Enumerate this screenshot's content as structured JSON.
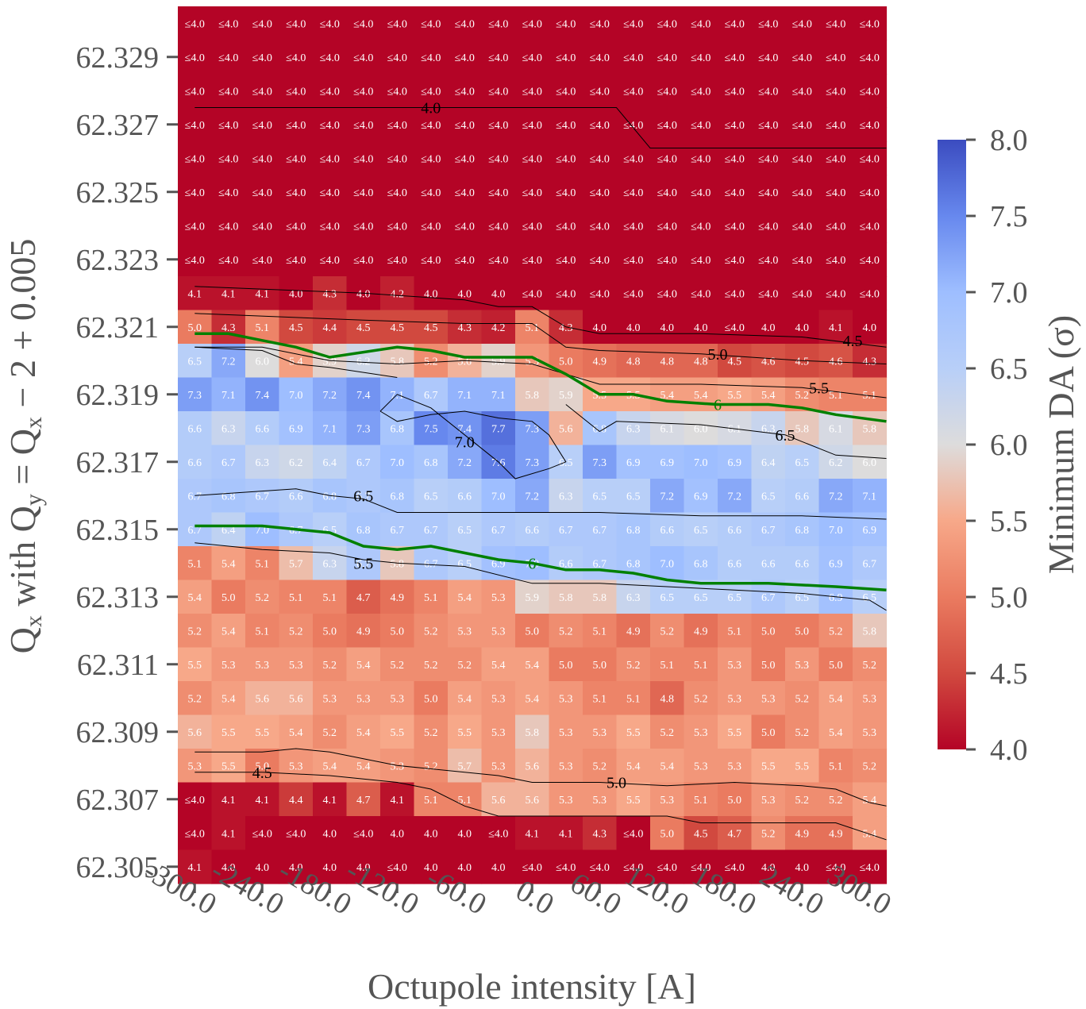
{
  "chart_data": {
    "type": "heatmap",
    "xlabel": "Octupole intensity [A]",
    "ylabel_parts": {
      "q1": "Q",
      "s1": "x",
      "mid": " with ",
      "q2": "Q",
      "s2": "y",
      "eq": " = ",
      "q3": "Q",
      "s3": "x",
      "tail": " − 2 + 0.005"
    },
    "colorbar_label": "Minimum DA (σ)",
    "colormap": "coolwarm_r",
    "vmin": 4.0,
    "vmax": 8.0,
    "colorbar_ticks": [
      "4.0",
      "4.5",
      "5.0",
      "5.5",
      "6.0",
      "6.5",
      "7.0",
      "7.5",
      "8.0"
    ],
    "colorbar_tick_values": [
      4.0,
      4.5,
      5.0,
      5.5,
      6.0,
      6.5,
      7.0,
      7.5,
      8.0
    ],
    "x": [
      -300,
      -270,
      -240,
      -210,
      -180,
      -150,
      -120,
      -90,
      -60,
      -30,
      0,
      30,
      60,
      90,
      120,
      150,
      180,
      210,
      240,
      270,
      300
    ],
    "x_tick_labels": [
      "-300.0",
      "-240.0",
      "-180.0",
      "-120.0",
      "-60.0",
      "0.0",
      "60.0",
      "120.0",
      "180.0",
      "240.0",
      "300.0"
    ],
    "x_tick_values": [
      -300,
      -240,
      -180,
      -120,
      -60,
      0,
      60,
      120,
      180,
      240,
      300
    ],
    "y": [
      62.305,
      62.306,
      62.307,
      62.308,
      62.309,
      62.31,
      62.311,
      62.312,
      62.313,
      62.314,
      62.315,
      62.316,
      62.317,
      62.318,
      62.319,
      62.32,
      62.321,
      62.322,
      62.323,
      62.324,
      62.325,
      62.326,
      62.327,
      62.328,
      62.329,
      62.33
    ],
    "y_tick_labels": [
      "62.329",
      "62.327",
      "62.325",
      "62.323",
      "62.321",
      "62.319",
      "62.317",
      "62.315",
      "62.313",
      "62.311",
      "62.309",
      "62.307",
      "62.305"
    ],
    "y_tick_values": [
      62.329,
      62.327,
      62.325,
      62.323,
      62.321,
      62.319,
      62.317,
      62.315,
      62.313,
      62.311,
      62.309,
      62.307,
      62.305
    ],
    "cell_text_rows_top_to_bottom": [
      "≤4.0,≤4.0,≤4.0,≤4.0,≤4.0,≤4.0,≤4.0,≤4.0,≤4.0,≤4.0,≤4.0,≤4.0,≤4.0,≤4.0,≤4.0,≤4.0,≤4.0,≤4.0,≤4.0,≤4.0,≤4.0",
      "≤4.0,≤4.0,≤4.0,≤4.0,≤4.0,≤4.0,≤4.0,≤4.0,≤4.0,≤4.0,≤4.0,≤4.0,≤4.0,≤4.0,≤4.0,≤4.0,≤4.0,≤4.0,≤4.0,≤4.0,≤4.0",
      "≤4.0,≤4.0,≤4.0,≤4.0,≤4.0,≤4.0,≤4.0,≤4.0,≤4.0,≤4.0,≤4.0,≤4.0,≤4.0,≤4.0,≤4.0,≤4.0,≤4.0,≤4.0,≤4.0,≤4.0,≤4.0",
      "≤4.0,≤4.0,≤4.0,≤4.0,≤4.0,≤4.0,≤4.0,≤4.0,≤4.0,≤4.0,≤4.0,≤4.0,≤4.0,≤4.0,≤4.0,≤4.0,≤4.0,≤4.0,≤4.0,≤4.0,≤4.0",
      "≤4.0,≤4.0,≤4.0,≤4.0,≤4.0,≤4.0,≤4.0,≤4.0,≤4.0,≤4.0,≤4.0,≤4.0,≤4.0,≤4.0,≤4.0,≤4.0,≤4.0,≤4.0,≤4.0,≤4.0,≤4.0",
      "≤4.0,≤4.0,≤4.0,≤4.0,≤4.0,≤4.0,≤4.0,≤4.0,≤4.0,≤4.0,≤4.0,≤4.0,≤4.0,≤4.0,≤4.0,≤4.0,≤4.0,≤4.0,≤4.0,≤4.0,≤4.0",
      "≤4.0,≤4.0,≤4.0,≤4.0,≤4.0,≤4.0,≤4.0,≤4.0,≤4.0,≤4.0,≤4.0,≤4.0,≤4.0,≤4.0,≤4.0,≤4.0,≤4.0,≤4.0,≤4.0,≤4.0,≤4.0",
      "≤4.0,≤4.0,≤4.0,≤4.0,≤4.0,≤4.0,≤4.0,≤4.0,≤4.0,≤4.0,≤4.0,≤4.0,≤4.0,≤4.0,≤4.0,≤4.0,≤4.0,≤4.0,≤4.0,≤4.0,≤4.0",
      "4.1,4.1,4.1,4.0,4.3,4.0,4.2,4.0,4.0,4.0,≤4.0,≤4.0,≤4.0,≤4.0,≤4.0,≤4.0,≤4.0,≤4.0,≤4.0,≤4.0,≤4.0",
      "5.0,4.3,5.1,4.5,4.4,4.5,4.5,4.5,4.3,4.2,5.1,4.3,4.0,4.0,4.0,4.0,≤4.0,4.0,4.0,4.1,4.0",
      "6.5,7.2,6.0,5.4,5.9,6.2,5.8,5.2,5.6,5.9,5.3,5.0,4.9,4.8,4.8,4.8,4.5,4.6,4.5,4.6,4.3",
      "7.3,7.1,7.4,7.0,7.2,7.4,7.1,6.7,7.1,7.1,5.8,5.9,5.5,5.5,5.4,5.4,5.5,5.4,5.2,5.1,5.1",
      "6.6,6.3,6.6,6.9,7.1,7.3,6.8,7.5,7.4,7.7,7.3,5.6,6.8,6.3,6.1,6.0,6.1,6.3,5.8,6.1,5.8",
      "6.6,6.7,6.3,6.2,6.4,6.7,7.0,6.8,7.2,7.6,7.3,6.5,7.3,6.9,6.9,7.0,6.9,6.4,6.5,6.2,6.0",
      "6.7,6.8,6.7,6.6,6.8,6.7,6.8,6.5,6.6,7.0,7.2,6.3,6.5,6.5,7.2,6.9,7.2,6.5,6.6,7.2,7.1",
      "6.7,6.4,7.0,6.7,6.5,6.8,6.7,6.7,6.5,6.7,6.6,6.7,6.7,6.8,6.6,6.5,6.6,6.7,6.8,7.0,6.9",
      "5.1,5.4,5.1,5.7,6.3,6.7,5.8,6.7,6.5,6.9,7.0,6.6,6.7,6.8,7.0,6.8,6.6,6.6,6.6,6.9,6.7",
      "5.4,5.0,5.2,5.1,5.1,4.7,4.9,5.1,5.4,5.3,5.9,5.8,5.8,6.3,6.5,6.5,6.5,6.7,6.5,6.9,6.5",
      "5.2,5.4,5.1,5.2,5.0,4.9,5.0,5.2,5.3,5.3,5.0,5.2,5.1,4.9,5.2,4.9,5.1,5.0,5.0,5.2,5.8",
      "5.5,5.3,5.3,5.3,5.2,5.4,5.2,5.2,5.2,5.4,5.4,5.0,5.0,5.2,5.1,5.1,5.3,5.0,5.3,5.0,5.2",
      "5.2,5.4,5.6,5.6,5.3,5.3,5.3,5.0,5.4,5.3,5.4,5.3,5.1,5.1,4.8,5.2,5.3,5.3,5.2,5.4,5.3",
      "5.6,5.5,5.5,5.4,5.2,5.4,5.5,5.2,5.5,5.3,5.8,5.3,5.3,5.5,5.2,5.3,5.5,5.0,5.2,5.4,5.3",
      "5.3,5.5,5.0,5.3,5.4,5.4,5.3,5.2,5.7,5.3,5.6,5.3,5.2,5.4,5.4,5.3,5.3,5.5,5.5,5.1,5.2",
      "≤4.0,4.1,4.1,4.4,4.1,4.7,4.1,5.1,5.1,5.6,5.6,5.3,5.3,5.5,5.3,5.1,5.0,5.3,5.2,5.2,5.4",
      "≤4.0,4.1,≤4.0,≤4.0,4.0,≤4.0,4.0,4.0,4.0,≤4.0,4.1,4.1,4.3,≤4.0,5.0,4.5,4.7,5.2,4.9,4.9,5.4",
      "4.1,4.0,4.0,4.0,4.0,4.0,≤4.0,4.0,4.0,4.0,≤4.0,≤4.0,≤4.0,≤4.0,≤4.0,≤4.0,≤4.0,4.0,4.0,≤4.0,≤4.0"
    ],
    "contours": [
      {
        "level": 4.0,
        "label": "4.0",
        "color": "#000000",
        "width": 1,
        "label_at": [
          -90,
          62.3275
        ],
        "points": [
          [
            -300,
            62.3275
          ],
          [
            -90,
            62.3275
          ],
          [
            60,
            62.3275
          ],
          [
            75,
            62.3275
          ],
          [
            105,
            62.3263
          ],
          [
            315,
            62.3263
          ]
        ]
      },
      {
        "level": 4.5,
        "label": "4.5",
        "color": "#000000",
        "width": 1,
        "label_at": [
          285,
          62.3206
        ],
        "points": [
          [
            -300,
            62.3222
          ],
          [
            -150,
            62.322
          ],
          [
            -60,
            62.3218
          ],
          [
            -30,
            62.3216
          ],
          [
            0,
            62.3216
          ],
          [
            30,
            62.321
          ],
          [
            60,
            62.3208
          ],
          [
            150,
            62.3208
          ],
          [
            240,
            62.3207
          ],
          [
            315,
            62.3204
          ]
        ]
      },
      {
        "level": 5.0,
        "label": "5.0",
        "color": "#000000",
        "width": 1,
        "label_at": [
          165,
          62.3202
        ],
        "points": [
          [
            -300,
            62.3214
          ],
          [
            -150,
            62.3212
          ],
          [
            -60,
            62.3211
          ],
          [
            0,
            62.3211
          ],
          [
            30,
            62.3204
          ],
          [
            60,
            62.3203
          ],
          [
            150,
            62.3202
          ],
          [
            240,
            62.32
          ],
          [
            315,
            62.3199
          ]
        ]
      },
      {
        "level": 5.5,
        "label": "5.5",
        "color": "#000000",
        "width": 1,
        "label_at": [
          255,
          62.3192
        ],
        "points": [
          [
            -300,
            62.3204
          ],
          [
            -240,
            62.3204
          ],
          [
            -180,
            62.32
          ],
          [
            -120,
            62.3199
          ],
          [
            -60,
            62.32
          ],
          [
            0,
            62.3199
          ],
          [
            30,
            62.3196
          ],
          [
            60,
            62.3193
          ],
          [
            150,
            62.3193
          ],
          [
            240,
            62.3192
          ],
          [
            315,
            62.3189
          ]
        ]
      },
      {
        "level": 6.0,
        "label": "6",
        "color": "#008000",
        "width": 3.5,
        "label_at": [
          165,
          62.3187
        ],
        "points": [
          [
            -300,
            62.3208
          ],
          [
            -270,
            62.3208
          ],
          [
            -240,
            62.3206
          ],
          [
            -210,
            62.3204
          ],
          [
            -180,
            62.3201
          ],
          [
            -120,
            62.3204
          ],
          [
            -90,
            62.3203
          ],
          [
            -60,
            62.3201
          ],
          [
            -30,
            62.3201
          ],
          [
            0,
            62.3201
          ],
          [
            30,
            62.3196
          ],
          [
            60,
            62.319
          ],
          [
            90,
            62.319
          ],
          [
            120,
            62.3188
          ],
          [
            165,
            62.3187
          ],
          [
            210,
            62.3187
          ],
          [
            240,
            62.3186
          ],
          [
            270,
            62.3184
          ],
          [
            315,
            62.3182
          ]
        ]
      },
      {
        "level": 6.5,
        "label": "6.5",
        "color": "#000000",
        "width": 1,
        "label_at": [
          225,
          62.3178
        ],
        "points": [
          [
            -300,
            62.3204
          ],
          [
            -240,
            62.3203
          ],
          [
            -210,
            62.3199
          ],
          [
            -180,
            62.3198
          ],
          [
            -120,
            62.3195
          ]
        ]
      },
      {
        "level": 6.5,
        "label": "6.5",
        "color": "#000000",
        "width": 1,
        "label_at": [
          225,
          62.3178
        ],
        "points": [
          [
            30,
            62.3187
          ],
          [
            60,
            62.3179
          ],
          [
            75,
            62.3182
          ],
          [
            150,
            62.3181
          ],
          [
            225,
            62.3178
          ],
          [
            240,
            62.3176
          ],
          [
            270,
            62.3172
          ],
          [
            315,
            62.3171
          ]
        ]
      },
      {
        "level": 7.0,
        "label": "7.0",
        "color": "#000000",
        "width": 1,
        "label_at": [
          -60,
          62.3176
        ],
        "points": [
          [
            -135,
            62.3185
          ],
          [
            -120,
            62.319
          ],
          [
            -90,
            62.3186
          ],
          [
            -60,
            62.3178
          ],
          [
            -30,
            62.317
          ],
          [
            -15,
            62.3165
          ],
          [
            15,
            62.3168
          ],
          [
            30,
            62.317
          ],
          [
            15,
            62.3178
          ],
          [
            0,
            62.3182
          ],
          [
            -30,
            62.3183
          ],
          [
            -60,
            62.3185
          ],
          [
            -90,
            62.3184
          ],
          [
            -120,
            62.3182
          ],
          [
            -135,
            62.3185
          ]
        ]
      },
      {
        "level": 6.5,
        "label": "6.5",
        "color": "#000000",
        "width": 1,
        "label_at": [
          -150,
          62.316
        ],
        "points": [
          [
            -300,
            62.316
          ],
          [
            -210,
            62.3162
          ],
          [
            -180,
            62.316
          ],
          [
            -150,
            62.3159
          ],
          [
            -120,
            62.3155
          ],
          [
            -60,
            62.3155
          ],
          [
            -30,
            62.3155
          ],
          [
            0,
            62.3155
          ],
          [
            60,
            62.3155
          ],
          [
            150,
            62.3154
          ],
          [
            240,
            62.3154
          ],
          [
            315,
            62.3153
          ]
        ]
      },
      {
        "level": 6.0,
        "label": "6",
        "color": "#008000",
        "width": 3.5,
        "label_at": [
          0,
          62.314
        ],
        "points": [
          [
            -300,
            62.3151
          ],
          [
            -240,
            62.3151
          ],
          [
            -210,
            62.315
          ],
          [
            -180,
            62.3149
          ],
          [
            -150,
            62.3145
          ],
          [
            -120,
            62.3144
          ],
          [
            -90,
            62.3145
          ],
          [
            -60,
            62.3143
          ],
          [
            -30,
            62.3141
          ],
          [
            0,
            62.314
          ],
          [
            30,
            62.3138
          ],
          [
            60,
            62.3138
          ],
          [
            90,
            62.3137
          ],
          [
            120,
            62.3135
          ],
          [
            150,
            62.3134
          ],
          [
            210,
            62.3134
          ],
          [
            270,
            62.3133
          ],
          [
            315,
            62.3132
          ]
        ]
      },
      {
        "level": 5.5,
        "label": "5.5",
        "color": "#000000",
        "width": 1,
        "label_at": [
          -150,
          62.314
        ],
        "points": [
          [
            -300,
            62.3146
          ],
          [
            -240,
            62.3144
          ],
          [
            -180,
            62.3143
          ],
          [
            -150,
            62.3141
          ],
          [
            -120,
            62.314
          ],
          [
            -60,
            62.3139
          ],
          [
            0,
            62.3134
          ],
          [
            60,
            62.3134
          ],
          [
            120,
            62.3133
          ],
          [
            180,
            62.3132
          ],
          [
            240,
            62.3131
          ],
          [
            300,
            62.3129
          ],
          [
            315,
            62.3126
          ]
        ]
      },
      {
        "level": 5.0,
        "label": "5.0",
        "color": "#000000",
        "width": 1,
        "label_at": [
          75,
          62.3075
        ],
        "points": [
          [
            -300,
            62.3084
          ],
          [
            -240,
            62.3084
          ],
          [
            -210,
            62.3085
          ],
          [
            -180,
            62.3084
          ],
          [
            -150,
            62.3082
          ],
          [
            -120,
            62.308
          ],
          [
            -90,
            62.3079
          ],
          [
            -60,
            62.3078
          ],
          [
            -30,
            62.3077
          ],
          [
            0,
            62.3075
          ],
          [
            60,
            62.3075
          ],
          [
            120,
            62.3074
          ],
          [
            180,
            62.3075
          ],
          [
            240,
            62.3074
          ],
          [
            270,
            62.3073
          ],
          [
            300,
            62.3069
          ],
          [
            315,
            62.3068
          ]
        ]
      },
      {
        "level": 4.5,
        "label": "4.5",
        "color": "#000000",
        "width": 1,
        "label_at": [
          -240,
          62.3078
        ],
        "points": [
          [
            -300,
            62.3078
          ],
          [
            -240,
            62.3078
          ],
          [
            -180,
            62.3077
          ],
          [
            -120,
            62.3075
          ],
          [
            -90,
            62.3073
          ],
          [
            -60,
            62.3068
          ],
          [
            -30,
            62.3065
          ],
          [
            0,
            62.3065
          ],
          [
            60,
            62.3065
          ],
          [
            120,
            62.3065
          ],
          [
            150,
            62.3063
          ],
          [
            210,
            62.3063
          ],
          [
            270,
            62.3063
          ],
          [
            315,
            62.3058
          ]
        ]
      }
    ]
  }
}
